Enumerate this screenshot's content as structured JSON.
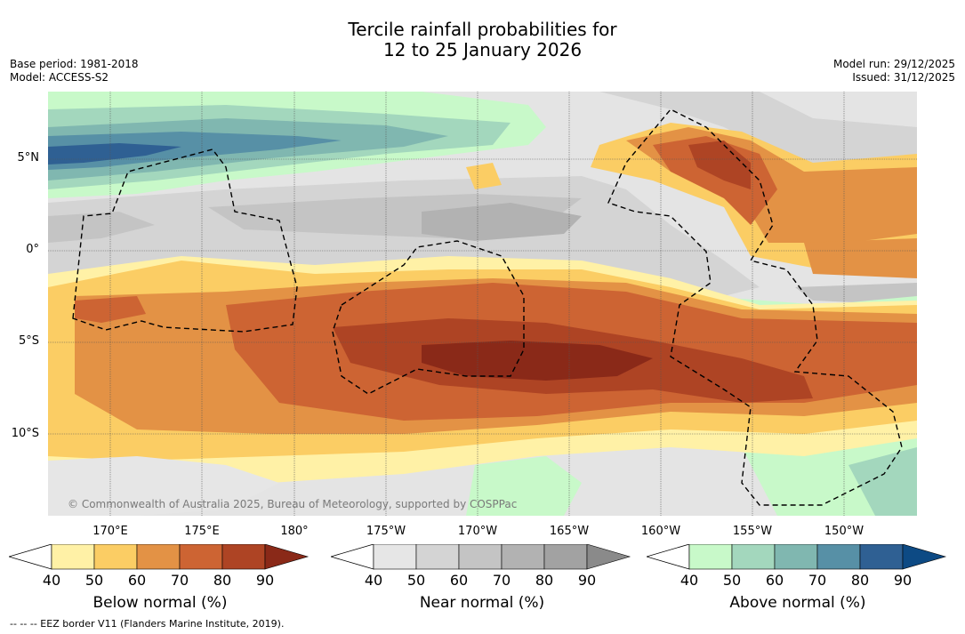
{
  "header": {
    "title_line1": "Tercile rainfall probabilities for",
    "title_line2": "12 to 25 January 2026",
    "base_period": "Base period: 1981-2018",
    "model": "Model: ACCESS-S2",
    "model_run": "Model run: 29/12/2025",
    "issued": "Issued: 31/12/2025"
  },
  "map": {
    "copyright": "© Commonwealth of Australia 2025, Bureau of Meteorology, supported by COSPPac",
    "lat_labels": [
      "5°N",
      "0°",
      "5°S",
      "10°S"
    ],
    "lon_labels": [
      "170°E",
      "175°E",
      "180°",
      "175°W",
      "170°W",
      "165°W",
      "160°W",
      "155°W",
      "150°W"
    ]
  },
  "legends": [
    {
      "title": "Below normal (%)",
      "ticks": [
        "40",
        "50",
        "60",
        "70",
        "80",
        "90"
      ],
      "colors": [
        "#fff1a6",
        "#fbcd64",
        "#e39245",
        "#cd6433",
        "#ae4424",
        "#8a2918"
      ]
    },
    {
      "title": "Near normal (%)",
      "ticks": [
        "40",
        "50",
        "60",
        "70",
        "80",
        "90"
      ],
      "colors": [
        "#e6e6e6",
        "#d4d4d4",
        "#c4c4c4",
        "#b2b2b2",
        "#a2a2a2",
        "#8a8a8a"
      ]
    },
    {
      "title": "Above normal (%)",
      "ticks": [
        "40",
        "50",
        "60",
        "70",
        "80",
        "90"
      ],
      "colors": [
        "#c8f9c9",
        "#a3d7bd",
        "#80b7b0",
        "#5790a6",
        "#2f6093",
        "#0d4a84"
      ]
    }
  ],
  "footer": "--  --  -- EEZ border V11 (Flanders Marine Institute, 2019)."
}
